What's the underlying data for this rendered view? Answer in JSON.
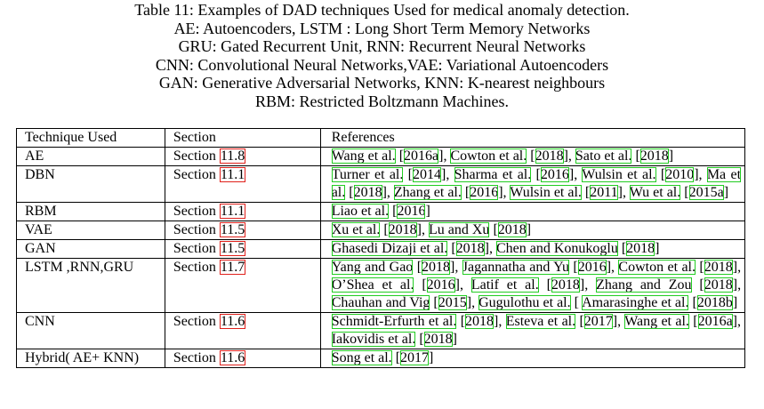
{
  "caption": {
    "lines": [
      "Table 11: Examples of DAD techniques Used for medical anomaly detection.",
      "AE: Autoencoders, LSTM : Long Short Term Memory Networks",
      "GRU: Gated Recurrent Unit, RNN: Recurrent Neural Networks",
      "CNN: Convolutional Neural Networks,VAE: Variational Autoencoders",
      "GAN: Generative Adversarial Networks, KNN: K-nearest neighbours",
      "RBM: Restricted Boltzmann Machines."
    ]
  },
  "table": {
    "headers": [
      "Technique Used",
      "Section",
      "References"
    ],
    "section_prefix": "Section ",
    "rows": [
      {
        "technique": "AE",
        "section": "11.8",
        "refs": [
          {
            "a": "Wang et al.",
            "y": "2016a"
          },
          {
            "a": "Cowton et al.",
            "y": "2018"
          },
          {
            "a": "Sato et al.",
            "y": "2018"
          }
        ]
      },
      {
        "technique": "DBN",
        "section": "11.1",
        "refs": [
          {
            "a": "Turner et al.",
            "y": "2014"
          },
          {
            "a": "Sharma et al.",
            "y": "2016"
          },
          {
            "a": "Wulsin et al.",
            "y": "2010"
          },
          {
            "a": "Ma et al.",
            "y": "2018"
          },
          {
            "a": "Zhang et al.",
            "y": "2016"
          },
          {
            "a": "Wulsin et al.",
            "y": "2011"
          },
          {
            "a": "Wu et al.",
            "y": "2015a"
          }
        ]
      },
      {
        "technique": "RBM",
        "section": "11.1",
        "refs": [
          {
            "a": "Liao et al.",
            "y": "2016"
          }
        ]
      },
      {
        "technique": "VAE",
        "section": "11.5",
        "refs": [
          {
            "a": "Xu et al.",
            "y": "2018"
          },
          {
            "a": "Lu and Xu",
            "y": "2018"
          }
        ]
      },
      {
        "technique": "GAN",
        "section": "11.5",
        "refs": [
          {
            "a": "Ghasedi Dizaji et al.",
            "y": "2018"
          },
          {
            "a": "Chen and Konukoglu",
            "y": "2018"
          }
        ]
      },
      {
        "technique": "LSTM ,RNN,GRU",
        "section": "11.7",
        "refs": [
          {
            "a": "Yang and Gao",
            "y": "2018"
          },
          {
            "a": "Jagannatha and Yu",
            "y": "2016"
          },
          {
            "a": "Cowton et al.",
            "y": "2018"
          },
          {
            "a": "O’Shea et al.",
            "y": "2016"
          },
          {
            "a": "Latif et al.",
            "y": "2018"
          },
          {
            "a": "Zhang and Zou",
            "y": "2018"
          },
          {
            "a": "Chauhan and Vig",
            "y": "2015"
          },
          {
            "a": "Gugulothu et al.",
            "y": ""
          },
          {
            "a": "Amarasinghe et al.",
            "y": "2018b"
          }
        ]
      },
      {
        "technique": "CNN",
        "section": "11.6",
        "refs": [
          {
            "a": "Schmidt-Erfurth et al.",
            "y": "2018"
          },
          {
            "a": "Esteva et al.",
            "y": "2017"
          },
          {
            "a": "Wang et al.",
            "y": "2016a"
          },
          {
            "a": "Iakovidis et al.",
            "y": "2018"
          }
        ]
      },
      {
        "technique": "Hybrid( AE+ KNN)",
        "section": "11.6",
        "refs": [
          {
            "a": "Song et al.",
            "y": "2017"
          }
        ]
      }
    ]
  }
}
